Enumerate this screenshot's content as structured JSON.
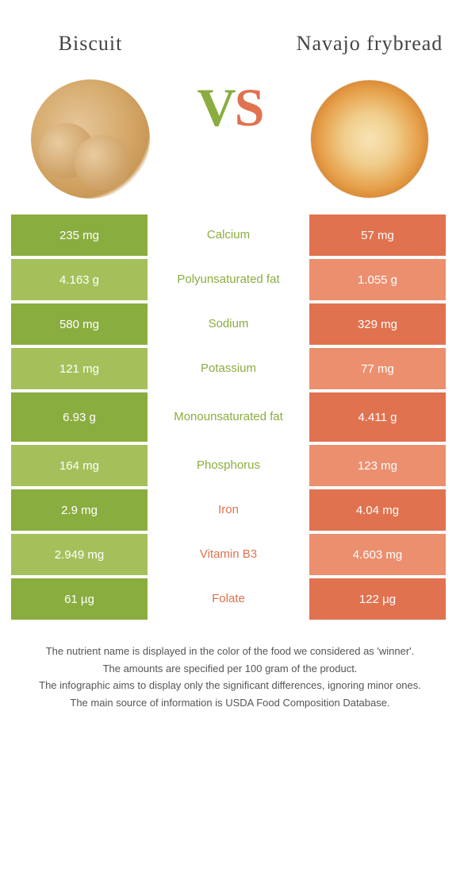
{
  "foods": {
    "left": {
      "name": "Biscuit"
    },
    "right": {
      "name": "Navajo frybread"
    }
  },
  "vs": {
    "v": "V",
    "s": "S"
  },
  "colors": {
    "left": "#8aad3f",
    "right": "#e0724f",
    "left_alt": "#a5c05b",
    "right_alt": "#eb8f6f"
  },
  "rows": [
    {
      "nutrient": "Calcium",
      "left": "235 mg",
      "right": "57 mg",
      "winner": "left",
      "tall": false
    },
    {
      "nutrient": "Polyunsaturated fat",
      "left": "4.163 g",
      "right": "1.055 g",
      "winner": "left",
      "tall": false
    },
    {
      "nutrient": "Sodium",
      "left": "580 mg",
      "right": "329 mg",
      "winner": "left",
      "tall": false
    },
    {
      "nutrient": "Potassium",
      "left": "121 mg",
      "right": "77 mg",
      "winner": "left",
      "tall": false
    },
    {
      "nutrient": "Monounsaturated fat",
      "left": "6.93 g",
      "right": "4.411 g",
      "winner": "left",
      "tall": true
    },
    {
      "nutrient": "Phosphorus",
      "left": "164 mg",
      "right": "123 mg",
      "winner": "left",
      "tall": false
    },
    {
      "nutrient": "Iron",
      "left": "2.9 mg",
      "right": "4.04 mg",
      "winner": "right",
      "tall": false
    },
    {
      "nutrient": "Vitamin B3",
      "left": "2.949 mg",
      "right": "4.603 mg",
      "winner": "right",
      "tall": false
    },
    {
      "nutrient": "Folate",
      "left": "61 µg",
      "right": "122 µg",
      "winner": "right",
      "tall": false
    }
  ],
  "footer": {
    "line1": "The nutrient name is displayed in the color of the food we considered as 'winner'.",
    "line2": "The amounts are specified per 100 gram of the product.",
    "line3": "The infographic aims to display only the significant differences, ignoring minor ones.",
    "line4": "The main source of information is USDA Food Composition Database."
  }
}
